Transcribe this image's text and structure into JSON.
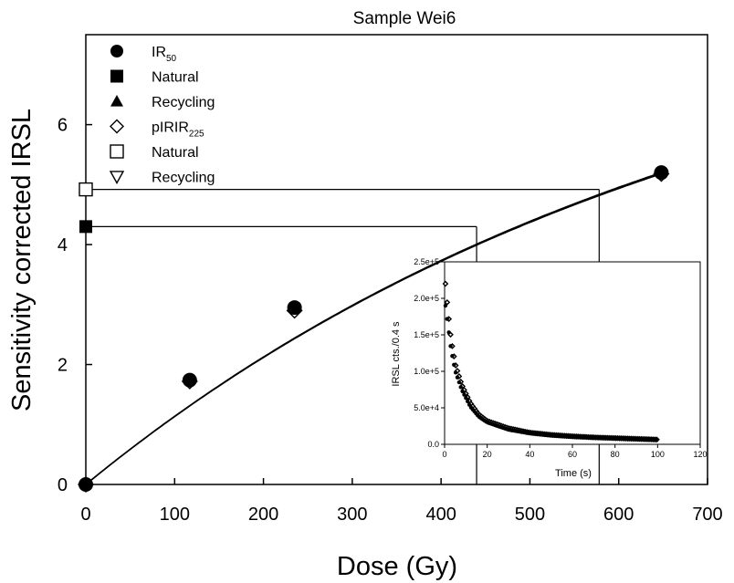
{
  "chart_data": [
    {
      "type": "scatter",
      "title": "Sample Wei6",
      "xlabel": "Dose (Gy)",
      "ylabel": "Sensitivity corrected IRSL",
      "xlim": [
        0,
        700
      ],
      "ylim": [
        0,
        7.5
      ],
      "x_ticks": [
        "0",
        "100",
        "200",
        "300",
        "400",
        "500",
        "600",
        "700"
      ],
      "y_ticks": [
        "0",
        "2",
        "4",
        "6"
      ],
      "legend": [
        {
          "label": "IR",
          "sub": "50",
          "marker": "filled-circle"
        },
        {
          "label": "Natural",
          "sub": "",
          "marker": "filled-square"
        },
        {
          "label": "Recycling",
          "sub": "",
          "marker": "filled-triangle"
        },
        {
          "label": "pIRIR",
          "sub": "225",
          "marker": "open-diamond"
        },
        {
          "label": "Natural",
          "sub": "",
          "marker": "open-square"
        },
        {
          "label": "Recycling",
          "sub": "",
          "marker": "open-triangle-down"
        }
      ],
      "series": [
        {
          "name": "IR50",
          "x": [
            0,
            117,
            235,
            648
          ],
          "y": [
            0,
            1.74,
            2.95,
            5.2
          ]
        },
        {
          "name": "pIRIR225",
          "x": [
            0,
            117,
            235,
            648
          ],
          "y": [
            0,
            1.72,
            2.9,
            5.18
          ]
        }
      ],
      "naturals": [
        {
          "name": "IR50 natural",
          "y": 4.3,
          "de": 440
        },
        {
          "name": "pIRIR225 natural",
          "y": 4.92,
          "de": 578
        }
      ]
    },
    {
      "type": "scatter",
      "xlabel": "Time (s)",
      "ylabel": "IRSL cts./0.4 s",
      "xlim": [
        0,
        120
      ],
      "ylim": [
        0,
        250000
      ],
      "x_ticks": [
        "0",
        "20",
        "40",
        "60",
        "80",
        "100",
        "120"
      ],
      "y_ticks": [
        "0.0",
        "5.0e+4",
        "1.0e+5",
        "1.5e+5",
        "2.0e+5",
        "2.5e+5"
      ],
      "series": [
        {
          "name": "IR50 decay",
          "x": [
            0.4,
            1.5,
            3,
            5,
            8,
            12,
            16,
            20,
            30,
            40,
            50,
            60,
            70,
            80,
            90,
            100
          ],
          "y": [
            190000,
            165000,
            130000,
            100000,
            75000,
            52000,
            38000,
            30000,
            20000,
            15000,
            12000,
            10000,
            9000,
            8000,
            7000,
            6000
          ]
        },
        {
          "name": "pIRIR225 decay",
          "x": [
            0.4,
            1.5,
            3,
            5,
            8,
            12,
            16,
            20,
            30,
            40,
            50,
            60,
            70,
            80,
            90,
            100
          ],
          "y": [
            220000,
            185000,
            145000,
            110000,
            82000,
            57000,
            41000,
            32000,
            22000,
            16000,
            13000,
            11000,
            9500,
            8500,
            7500,
            6500
          ]
        }
      ]
    }
  ]
}
